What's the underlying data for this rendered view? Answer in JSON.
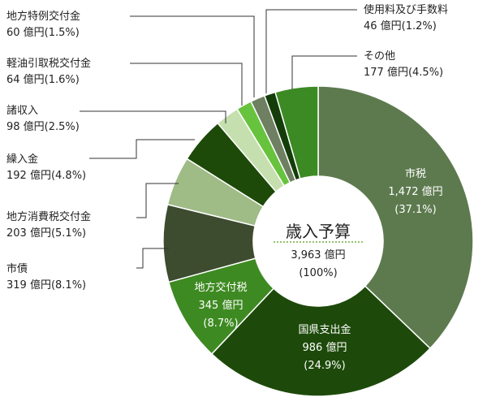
{
  "chart_data": {
    "type": "pie",
    "unit": "億円",
    "center": {
      "title": "歳入予算",
      "value": "3,963 億円",
      "percent": "(100%)"
    },
    "slices": [
      {
        "name": "市税",
        "value": 1472,
        "value_text": "1,472 億円",
        "percent_text": "(37.1%)",
        "color": "#5d7a4e",
        "label_inside": true
      },
      {
        "name": "国県支出金",
        "value": 986,
        "value_text": "986 億円",
        "percent_text": "(24.9%)",
        "color": "#1d4a0a",
        "label_inside": true
      },
      {
        "name": "地方交付税",
        "value": 345,
        "value_text": "345 億円",
        "percent_text": "(8.7%)",
        "color": "#3e8a22",
        "label_inside": true
      },
      {
        "name": "市債",
        "value": 319,
        "value_text": "319 億円",
        "percent_text": "(8.1%)",
        "color": "#3d4b2e",
        "label_inside": false
      },
      {
        "name": "地方消費税交付金",
        "value": 203,
        "value_text": "203 億円",
        "percent_text": "(5.1%)",
        "color": "#9fbb86",
        "label_inside": false
      },
      {
        "name": "繰入金",
        "value": 192,
        "value_text": "192 億円",
        "percent_text": "(4.8%)",
        "color": "#1e4a09",
        "label_inside": false
      },
      {
        "name": "諸収入",
        "value": 98,
        "value_text": "98 億円",
        "percent_text": "(2.5%)",
        "color": "#c6dfae",
        "label_inside": false
      },
      {
        "name": "軽油引取税交付金",
        "value": 64,
        "value_text": "64 億円",
        "percent_text": "(1.6%)",
        "color": "#67c33e",
        "label_inside": false
      },
      {
        "name": "地方特例交付金",
        "value": 60,
        "value_text": "60 億円",
        "percent_text": "(1.5%)",
        "color": "#6e7f62",
        "label_inside": false
      },
      {
        "name": "使用料及び手数料",
        "value": 46,
        "value_text": "46 億円",
        "percent_text": "(1.2%)",
        "color": "#143d09",
        "label_inside": false
      },
      {
        "name": "その他",
        "value": 177,
        "value_text": "177 億円",
        "percent_text": "(4.5%)",
        "color": "#3c8a24",
        "label_inside": false
      }
    ]
  }
}
